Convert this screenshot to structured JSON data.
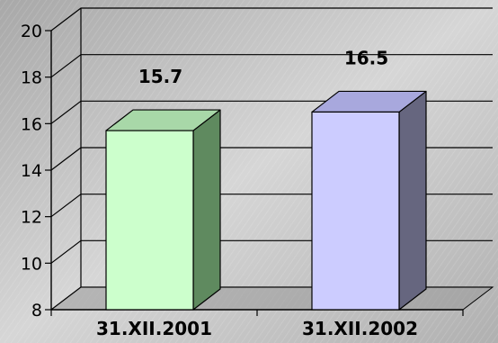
{
  "chart_data": {
    "type": "bar",
    "title": "",
    "xlabel": "",
    "ylabel": "",
    "categories": [
      "31.XII.2001",
      "31.XII.2002"
    ],
    "values": [
      15.7,
      16.5
    ],
    "data_labels": [
      "15.7",
      "16.5"
    ],
    "ylim": [
      8,
      20
    ],
    "yticks": [
      8,
      10,
      12,
      14,
      16,
      18,
      20
    ],
    "grid": true,
    "three_d": true,
    "legend": "none",
    "colors": {
      "background": "#bdbdbd",
      "bar_front": [
        "#ccffcc",
        "#ccccff"
      ],
      "bar_side": [
        "#5f8a5f",
        "#66667f"
      ],
      "bar_top": [
        "#a8d8a8",
        "#a8a8dd"
      ],
      "axis": "#000000",
      "grid": "#000000"
    }
  }
}
